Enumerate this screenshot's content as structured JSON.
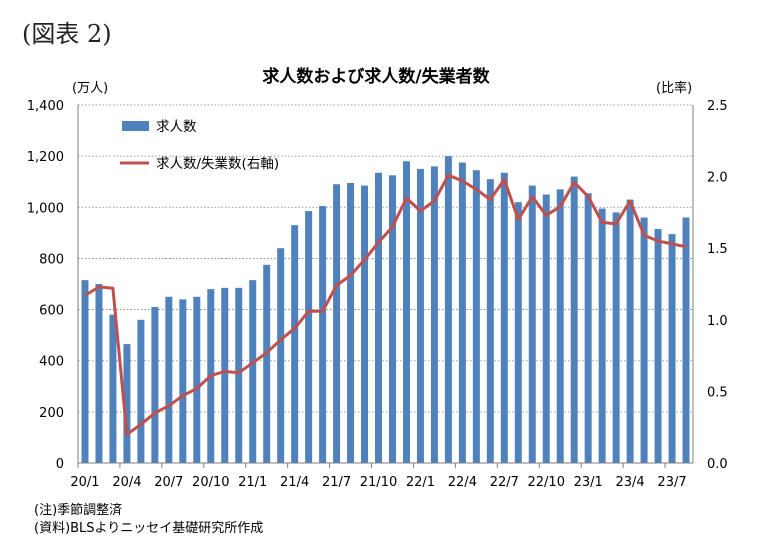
{
  "figure_label": "(図表 2)",
  "notes": {
    "note": "(注)季節調整済",
    "source": "(資料)BLSよりニッセイ基礎研究所作成"
  },
  "colors": {
    "bar": "#4f81bd",
    "line": "#c0504d",
    "grid": "#7f7f7f"
  },
  "chart_data": {
    "type": "bar",
    "title": "求人数および求人数/失業者数",
    "left_unit": "(万人)",
    "right_unit": "(比率)",
    "legend": {
      "placement": "top-left",
      "bar_label": "求人数",
      "line_label": "求人数/失業数(右軸)"
    },
    "y_left": {
      "min": 0,
      "max": 1400,
      "step": 200,
      "tick_labels": [
        "0",
        "200",
        "400",
        "600",
        "800",
        "1,000",
        "1,200",
        "1,400"
      ]
    },
    "y_right": {
      "min": 0,
      "max": 2.5,
      "step": 0.5,
      "tick_labels": [
        "0.0",
        "0.5",
        "1.0",
        "1.5",
        "2.0",
        "2.5"
      ]
    },
    "x_tick_labels": [
      "20/1",
      "20/4",
      "20/7",
      "20/10",
      "21/1",
      "21/4",
      "21/7",
      "21/10",
      "22/1",
      "22/4",
      "22/7",
      "22/10",
      "23/1",
      "23/4",
      "23/7"
    ],
    "grid": "horizontal dotted",
    "categories": [
      "20/1",
      "20/2",
      "20/3",
      "20/4",
      "20/5",
      "20/6",
      "20/7",
      "20/8",
      "20/9",
      "20/10",
      "20/11",
      "20/12",
      "21/1",
      "21/2",
      "21/3",
      "21/4",
      "21/5",
      "21/6",
      "21/7",
      "21/8",
      "21/9",
      "21/10",
      "21/11",
      "21/12",
      "22/1",
      "22/2",
      "22/3",
      "22/4",
      "22/5",
      "22/6",
      "22/7",
      "22/8",
      "22/9",
      "22/10",
      "22/11",
      "22/12",
      "23/1",
      "23/2",
      "23/3",
      "23/4",
      "23/5",
      "23/6",
      "23/7",
      "23/8"
    ],
    "series": [
      {
        "name": "求人数",
        "axis": "left",
        "values": [
          715,
          700,
          580,
          465,
          560,
          610,
          650,
          640,
          650,
          680,
          685,
          685,
          715,
          775,
          840,
          930,
          985,
          1005,
          1090,
          1095,
          1085,
          1135,
          1125,
          1180,
          1150,
          1160,
          1200,
          1175,
          1145,
          1110,
          1135,
          1020,
          1085,
          1050,
          1070,
          1120,
          1055,
          995,
          980,
          1030,
          960,
          915,
          895,
          960
        ]
      },
      {
        "name": "求人数/失業数(右軸)",
        "axis": "right",
        "values": [
          1.17,
          1.23,
          1.22,
          0.2,
          0.27,
          0.35,
          0.4,
          0.47,
          0.52,
          0.61,
          0.64,
          0.63,
          0.7,
          0.77,
          0.86,
          0.94,
          1.06,
          1.06,
          1.24,
          1.31,
          1.42,
          1.54,
          1.65,
          1.85,
          1.76,
          1.83,
          2.01,
          1.97,
          1.91,
          1.84,
          1.98,
          1.7,
          1.86,
          1.73,
          1.79,
          1.96,
          1.86,
          1.68,
          1.67,
          1.83,
          1.59,
          1.55,
          1.53,
          1.51
        ]
      }
    ]
  }
}
